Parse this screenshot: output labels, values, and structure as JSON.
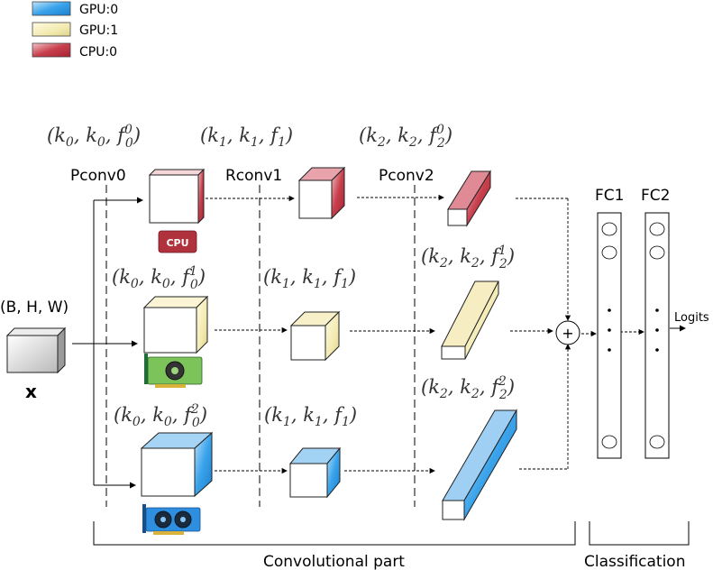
{
  "legend": [
    {
      "label": "GPU:0",
      "color": "#4aa8e8"
    },
    {
      "label": "GPU:1",
      "color": "#efe7a6"
    },
    {
      "label": "CPU:0",
      "color": "#c0313f"
    }
  ],
  "input": {
    "shape_label": "(B, H, W)",
    "symbol": "x"
  },
  "stages": {
    "pconv0": "Pconv0",
    "rconv1": "Rconv1",
    "pconv2": "Pconv2"
  },
  "rows": [
    {
      "device": "CPU:0",
      "pconv0": {
        "base": "(k",
        "sub1": "0",
        "mid": ", k",
        "sub2": "0",
        "tail": ", f",
        "sup": "0",
        "sub3": "0",
        "close": ")"
      },
      "rconv1": {
        "base": "(k",
        "sub1": "1",
        "mid": ", k",
        "sub2": "1",
        "tail": ", f",
        "sup": "",
        "sub3": "1",
        "close": ")"
      },
      "pconv2": {
        "base": "(k",
        "sub1": "2",
        "mid": ", k",
        "sub2": "2",
        "tail": ", f",
        "sup": "0",
        "sub3": "2",
        "close": ")"
      }
    },
    {
      "device": "GPU:1",
      "pconv0": {
        "base": "(k",
        "sub1": "0",
        "mid": ", k",
        "sub2": "0",
        "tail": ", f",
        "sup": "1",
        "sub3": "0",
        "close": ")"
      },
      "rconv1": {
        "base": "(k",
        "sub1": "1",
        "mid": ", k",
        "sub2": "1",
        "tail": ", f",
        "sup": "",
        "sub3": "1",
        "close": ")"
      },
      "pconv2": {
        "base": "(k",
        "sub1": "2",
        "mid": ", k",
        "sub2": "2",
        "tail": ", f",
        "sup": "1",
        "sub3": "2",
        "close": ")"
      }
    },
    {
      "device": "GPU:0",
      "pconv0": {
        "base": "(k",
        "sub1": "0",
        "mid": ", k",
        "sub2": "0",
        "tail": ", f",
        "sup": "2",
        "sub3": "0",
        "close": ")"
      },
      "rconv1": {
        "base": "(k",
        "sub1": "1",
        "mid": ", k",
        "sub2": "1",
        "tail": ", f",
        "sup": "",
        "sub3": "1",
        "close": ")"
      },
      "pconv2": {
        "base": "(k",
        "sub1": "2",
        "mid": ", k",
        "sub2": "2",
        "tail": ", f",
        "sup": "2",
        "sub3": "2",
        "close": ")"
      }
    }
  ],
  "icons": {
    "cpu_text": "CPU",
    "gpu1": "graphics-card-icon",
    "gpu0": "graphics-card-icon"
  },
  "sum_symbol": "+",
  "fc": {
    "fc1": "FC1",
    "fc2": "FC2",
    "dots": ".",
    "logits": "Logits"
  },
  "sections": {
    "conv": "Convolutional part",
    "cls": "Classification"
  }
}
